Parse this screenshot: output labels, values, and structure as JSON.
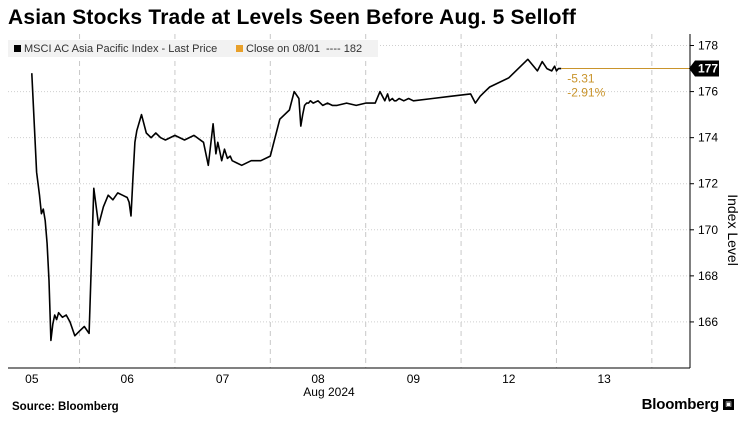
{
  "title": "Asian Stocks Trade at Levels Seen Before Aug. 5 Selloff",
  "source": "Source: Bloomberg",
  "brand": "Bloomberg",
  "chart_data": {
    "type": "line",
    "ylabel": "Index Level",
    "xlabel": "Aug 2024",
    "ylim": [
      164,
      178.5
    ],
    "yticks": [
      166,
      168,
      170,
      172,
      174,
      176,
      178
    ],
    "xtick_labels": [
      "05",
      "06",
      "07",
      "08",
      "09",
      "12",
      "13"
    ],
    "legend": {
      "position": "top-left",
      "entries": [
        {
          "label": "MSCI AC Asia Pacific Index - Last Price",
          "color": "#000000"
        },
        {
          "label": "Close on 08/01",
          "value_label": "---- 182",
          "color": "#e8a02a"
        }
      ]
    },
    "last_value_label": "177",
    "change_label": "-5.31",
    "change_pct_label": "-2.91%",
    "reference_level": 177.0,
    "accent_color": "#c9942b",
    "grid": true,
    "series": [
      {
        "name": "MSCI AC Asia Pacific Index - Last Price",
        "color": "#000000",
        "x": [
          0,
          0.05,
          0.08,
          0.1,
          0.12,
          0.14,
          0.16,
          0.18,
          0.2,
          0.22,
          0.24,
          0.26,
          0.28,
          0.32,
          0.36,
          0.4,
          0.45,
          0.5,
          0.55,
          0.6,
          0.65,
          0.7,
          0.75,
          0.8,
          0.85,
          0.9,
          0.95,
          1.0,
          1.02,
          1.04,
          1.06,
          1.08,
          1.1,
          1.15,
          1.2,
          1.25,
          1.3,
          1.35,
          1.4,
          1.5,
          1.6,
          1.7,
          1.8,
          1.85,
          1.9,
          1.93,
          1.95,
          1.97,
          1.99,
          2.02,
          2.05,
          2.08,
          2.1,
          2.15,
          2.2,
          2.3,
          2.4,
          2.5,
          2.6,
          2.7,
          2.75,
          2.8,
          2.82,
          2.84,
          2.86,
          2.88,
          2.9,
          2.92,
          2.95,
          3.0,
          3.05,
          3.1,
          3.15,
          3.2,
          3.3,
          3.4,
          3.5,
          3.6,
          3.65,
          3.7,
          3.73,
          3.75,
          3.78,
          3.8,
          3.82,
          3.85,
          3.9,
          3.95,
          4.0,
          4.2,
          4.4,
          4.6,
          4.65,
          4.7,
          4.75,
          4.8,
          5.0,
          5.2,
          5.3,
          5.35,
          5.4,
          5.45,
          5.48,
          5.5,
          5.52,
          5.55
        ],
        "values": [
          176.8,
          172.5,
          171.5,
          170.7,
          170.9,
          170.4,
          169.4,
          167.8,
          165.2,
          165.9,
          166.3,
          166.1,
          166.4,
          166.2,
          166.3,
          166.0,
          165.4,
          165.6,
          165.8,
          165.5,
          171.8,
          170.2,
          171.0,
          171.5,
          171.3,
          171.6,
          171.5,
          171.4,
          171.2,
          170.6,
          172.3,
          173.8,
          174.3,
          175.0,
          174.2,
          174.0,
          174.2,
          174.0,
          173.9,
          174.1,
          173.9,
          174.1,
          173.8,
          172.8,
          174.6,
          173.3,
          173.8,
          173.4,
          173.0,
          173.5,
          173.1,
          173.2,
          173.0,
          172.9,
          172.8,
          173.0,
          173.0,
          173.2,
          174.8,
          175.2,
          176.0,
          175.7,
          174.5,
          175.0,
          175.4,
          175.5,
          175.5,
          175.6,
          175.5,
          175.6,
          175.4,
          175.5,
          175.4,
          175.4,
          175.5,
          175.4,
          175.5,
          175.5,
          176.0,
          175.6,
          175.9,
          175.6,
          175.7,
          175.6,
          175.6,
          175.7,
          175.6,
          175.7,
          175.6,
          175.7,
          175.8,
          175.9,
          175.5,
          175.8,
          176.0,
          176.2,
          176.6,
          177.4,
          176.9,
          177.3,
          177.0,
          176.9,
          177.1,
          176.9,
          177.0,
          177.0
        ]
      }
    ]
  }
}
